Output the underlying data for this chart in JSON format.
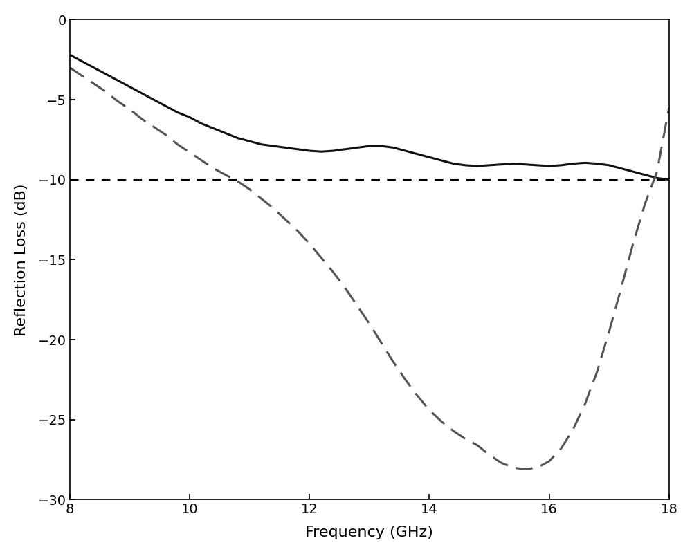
{
  "title": "",
  "xlabel": "Frequency (GHz)",
  "ylabel": "Reflection Loss (dB)",
  "xlim": [
    8,
    18
  ],
  "ylim": [
    -30,
    0
  ],
  "xticks": [
    8,
    10,
    12,
    14,
    16,
    18
  ],
  "yticks": [
    0,
    -5,
    -10,
    -15,
    -20,
    -25,
    -30
  ],
  "reference_line_y": -10,
  "solid_line_color": "#111111",
  "dashed_line_color": "#555555",
  "background_color": "#ffffff",
  "figsize": [
    10,
    8.01
  ],
  "dpi": 100,
  "solid_x": [
    8.0,
    8.2,
    8.4,
    8.6,
    8.8,
    9.0,
    9.2,
    9.4,
    9.6,
    9.8,
    10.0,
    10.2,
    10.4,
    10.6,
    10.8,
    11.0,
    11.2,
    11.4,
    11.6,
    11.8,
    12.0,
    12.2,
    12.4,
    12.6,
    12.8,
    13.0,
    13.2,
    13.4,
    13.6,
    13.8,
    14.0,
    14.2,
    14.4,
    14.6,
    14.8,
    15.0,
    15.2,
    15.4,
    15.6,
    15.8,
    16.0,
    16.2,
    16.4,
    16.6,
    16.8,
    17.0,
    17.2,
    17.4,
    17.6,
    17.8,
    18.0
  ],
  "solid_y": [
    -2.2,
    -2.6,
    -3.0,
    -3.4,
    -3.8,
    -4.2,
    -4.6,
    -5.0,
    -5.4,
    -5.8,
    -6.1,
    -6.5,
    -6.8,
    -7.1,
    -7.4,
    -7.6,
    -7.8,
    -7.9,
    -8.0,
    -8.1,
    -8.2,
    -8.25,
    -8.2,
    -8.1,
    -8.0,
    -7.9,
    -7.9,
    -8.0,
    -8.2,
    -8.4,
    -8.6,
    -8.8,
    -9.0,
    -9.1,
    -9.15,
    -9.1,
    -9.05,
    -9.0,
    -9.05,
    -9.1,
    -9.15,
    -9.1,
    -9.0,
    -8.95,
    -9.0,
    -9.1,
    -9.3,
    -9.5,
    -9.7,
    -9.9,
    -10.0
  ],
  "dashed_x": [
    8.0,
    8.2,
    8.4,
    8.6,
    8.8,
    9.0,
    9.2,
    9.4,
    9.6,
    9.8,
    10.0,
    10.2,
    10.4,
    10.6,
    10.8,
    11.0,
    11.2,
    11.4,
    11.6,
    11.8,
    12.0,
    12.2,
    12.4,
    12.6,
    12.8,
    13.0,
    13.2,
    13.4,
    13.6,
    13.8,
    14.0,
    14.2,
    14.4,
    14.6,
    14.8,
    15.0,
    15.2,
    15.4,
    15.6,
    15.8,
    16.0,
    16.2,
    16.4,
    16.6,
    16.8,
    17.0,
    17.2,
    17.4,
    17.6,
    17.8,
    18.0
  ],
  "dashed_y": [
    -3.0,
    -3.5,
    -4.0,
    -4.5,
    -5.1,
    -5.6,
    -6.2,
    -6.7,
    -7.2,
    -7.8,
    -8.3,
    -8.8,
    -9.3,
    -9.7,
    -10.1,
    -10.6,
    -11.2,
    -11.8,
    -12.5,
    -13.2,
    -14.0,
    -14.9,
    -15.8,
    -16.8,
    -17.9,
    -19.0,
    -20.2,
    -21.4,
    -22.5,
    -23.5,
    -24.4,
    -25.1,
    -25.7,
    -26.2,
    -26.6,
    -27.2,
    -27.7,
    -28.0,
    -28.1,
    -28.0,
    -27.6,
    -26.8,
    -25.6,
    -24.0,
    -22.0,
    -19.5,
    -16.8,
    -14.0,
    -11.5,
    -9.5,
    -5.5
  ]
}
